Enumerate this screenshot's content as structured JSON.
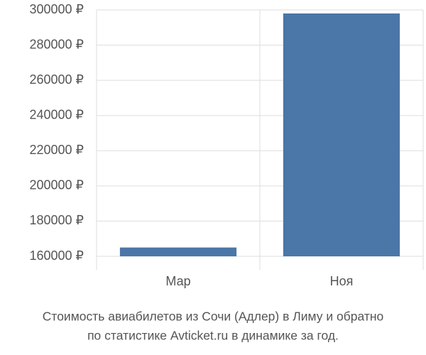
{
  "chart_data": {
    "type": "bar",
    "title": [
      "Стоимость авиабилетов из Сочи (Адлер) в Лиму и обратно",
      "по статистике Avticket.ru в динамике за год."
    ],
    "categories": [
      "Мар",
      "Ноя"
    ],
    "values": [
      165000,
      298000
    ],
    "color": "#4a76a8",
    "ylim": [
      160000,
      300000
    ],
    "yticks": [
      {
        "value": 160000,
        "label": "160000 ₽"
      },
      {
        "value": 180000,
        "label": "180000 ₽"
      },
      {
        "value": 200000,
        "label": "200000 ₽"
      },
      {
        "value": 220000,
        "label": "220000 ₽"
      },
      {
        "value": 240000,
        "label": "240000 ₽"
      },
      {
        "value": 260000,
        "label": "260000 ₽"
      },
      {
        "value": 280000,
        "label": "280000 ₽"
      },
      {
        "value": 300000,
        "label": "300000 ₽"
      }
    ],
    "grid": true
  }
}
